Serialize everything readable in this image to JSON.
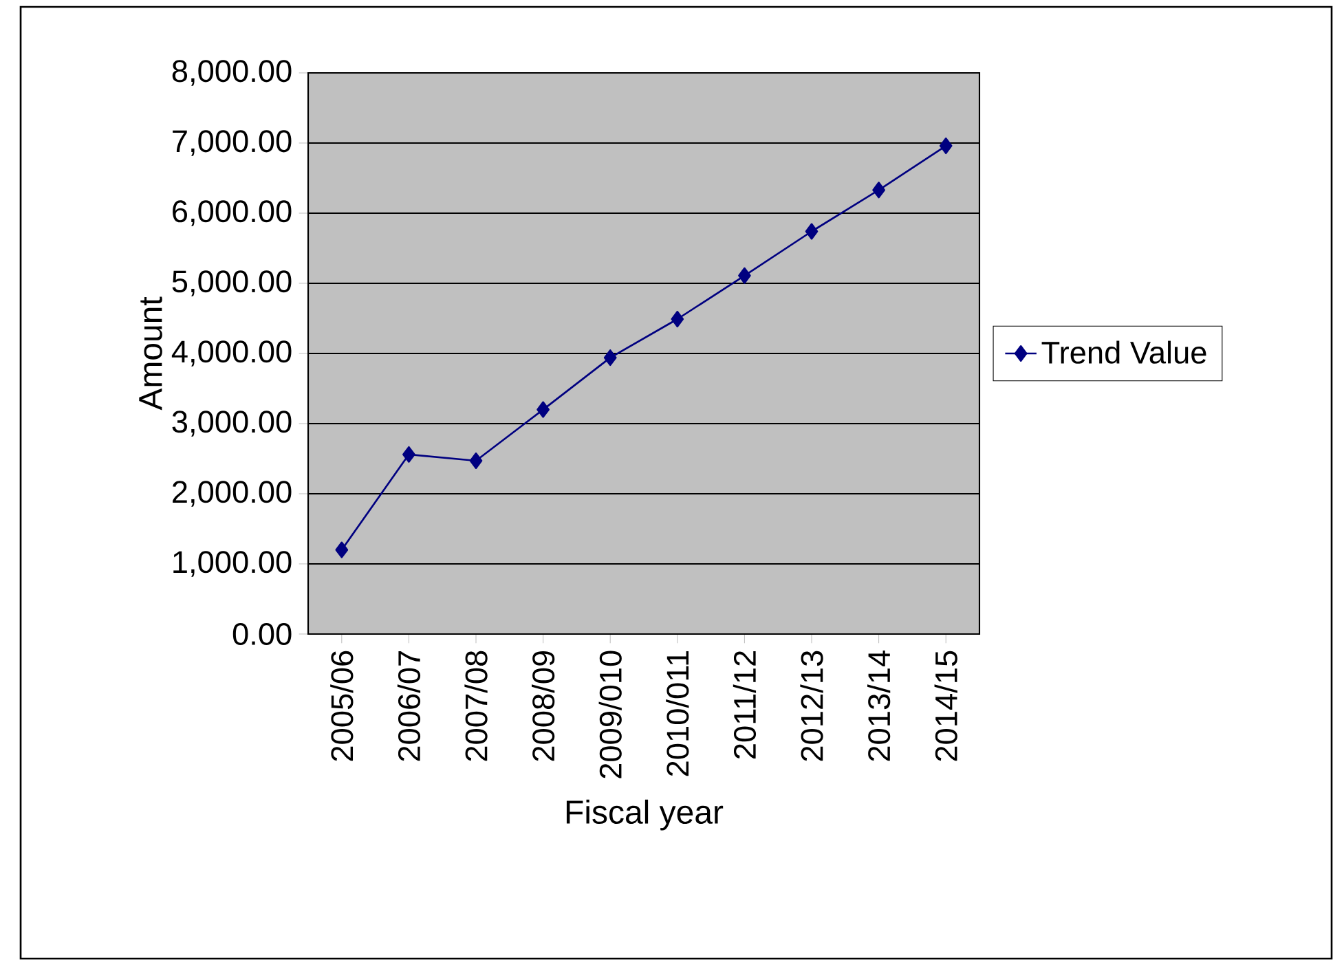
{
  "chart_data": {
    "type": "line",
    "xlabel": "Fiscal year",
    "ylabel": "Amount",
    "categories": [
      "2005/06",
      "2006/07",
      "2007/08",
      "2008/09",
      "2009/010",
      "2010/011",
      "2011/12",
      "2012/13",
      "2013/14",
      "2014/15"
    ],
    "series": [
      {
        "name": "Trend Value",
        "color": "#000080",
        "values": [
          1200,
          2560,
          2470,
          3200,
          3940,
          4490,
          5110,
          5740,
          6330,
          6960
        ]
      }
    ],
    "ylim": [
      0,
      8000
    ],
    "yticks": [
      {
        "value": 0,
        "label": "0.00"
      },
      {
        "value": 1000,
        "label": "1,000.00"
      },
      {
        "value": 2000,
        "label": "2,000.00"
      },
      {
        "value": 3000,
        "label": "3,000.00"
      },
      {
        "value": 4000,
        "label": "4,000.00"
      },
      {
        "value": 5000,
        "label": "5,000.00"
      },
      {
        "value": 6000,
        "label": "6,000.00"
      },
      {
        "value": 7000,
        "label": "7,000.00"
      },
      {
        "value": 8000,
        "label": "8,000.00"
      }
    ],
    "grid": "y",
    "legend": "right",
    "marker": "diamond",
    "line_style": "solid"
  }
}
